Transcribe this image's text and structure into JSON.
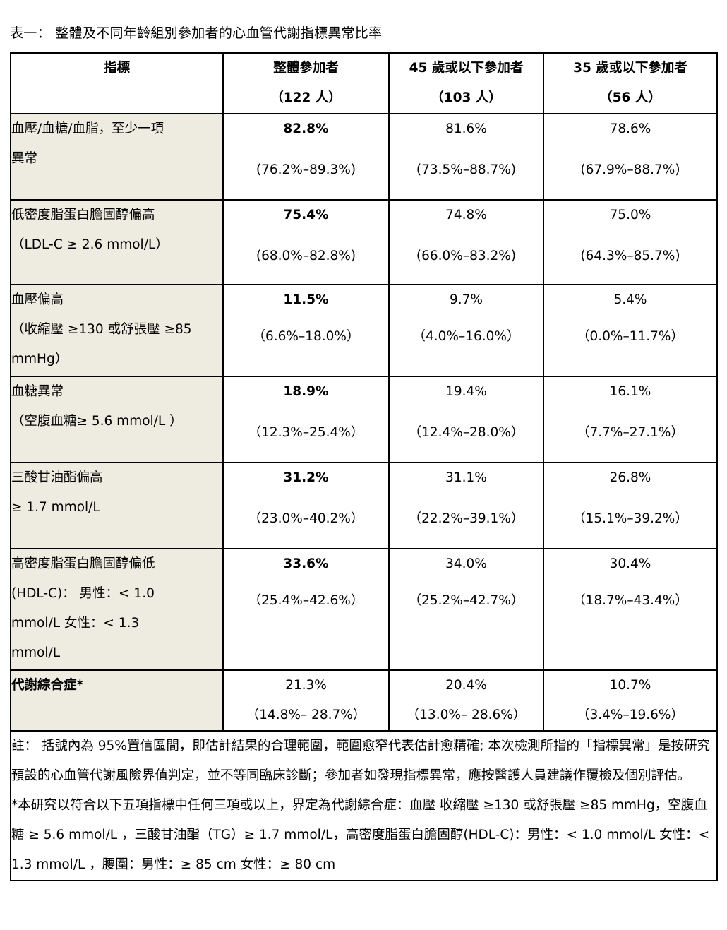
{
  "caption": "表一： 整體及不同年齡組別參加者的心血管代謝指標異常比率",
  "headers": [
    {
      "l1": "指標",
      "l2": ""
    },
    {
      "l1": "整體參加者",
      "l2": "（122 人）"
    },
    {
      "l1": "45 歲或以下參加者",
      "l2": "（103 人）"
    },
    {
      "l1": "35 歲或以下參加者",
      "l2": "（56 人）"
    }
  ],
  "rows": [
    {
      "indicator": [
        "血壓/血糖/血脂，至少一項",
        "異常"
      ],
      "cells": [
        {
          "v": "82.8%",
          "ci": "(76.2%–89.3%)"
        },
        {
          "v": "81.6%",
          "ci": "(73.5%–88.7%)"
        },
        {
          "v": "78.6%",
          "ci": "(67.9%–88.7%)"
        }
      ]
    },
    {
      "indicator": [
        "低密度脂蛋白膽固醇偏高",
        "（LDL-C ≥ 2.6 mmol/L）"
      ],
      "cells": [
        {
          "v": "75.4%",
          "ci": "(68.0%–82.8%)"
        },
        {
          "v": "74.8%",
          "ci": "(66.0%–83.2%)"
        },
        {
          "v": "75.0%",
          "ci": "(64.3%–85.7%)"
        }
      ]
    },
    {
      "indicator": [
        "血壓偏高",
        "（收縮壓 ≥130 或舒張壓 ≥85",
        "mmHg）"
      ],
      "cells": [
        {
          "v": "11.5%",
          "ci": "（6.6%–18.0%）"
        },
        {
          "v": "9.7%",
          "ci": "（4.0%–16.0%）"
        },
        {
          "v": "5.4%",
          "ci": "（0.0%–11.7%）"
        }
      ]
    },
    {
      "indicator": [
        "血糖異常",
        "（空腹血糖≥ 5.6 mmol/L ）"
      ],
      "cells": [
        {
          "v": "18.9%",
          "ci": "（12.3%–25.4%）"
        },
        {
          "v": "19.4%",
          "ci": "（12.4%–28.0%）"
        },
        {
          "v": "16.1%",
          "ci": "（7.7%–27.1%）"
        }
      ]
    },
    {
      "indicator": [
        "三酸甘油酯偏高",
        "≥ 1.7 mmol/L"
      ],
      "cells": [
        {
          "v": "31.2%",
          "ci": "（23.0%–40.2%）"
        },
        {
          "v": "31.1%",
          "ci": "（22.2%–39.1%）"
        },
        {
          "v": "26.8%",
          "ci": "（15.1%–39.2%）"
        }
      ]
    },
    {
      "indicator": [
        "高密度脂蛋白膽固醇偏低",
        "(HDL-C)： 男性：< 1.0",
        "mmol/L 女性：< 1.3",
        "mmol/L"
      ],
      "cells": [
        {
          "v": "33.6%",
          "ci": "（25.4%–42.6%）"
        },
        {
          "v": "34.0%",
          "ci": "（25.2%–42.7%）"
        },
        {
          "v": "30.4%",
          "ci": "（18.7%–43.4%）"
        }
      ]
    },
    {
      "indicator": [
        "代謝綜合症*"
      ],
      "cells": [
        {
          "v": "21.3%",
          "ci": "（14.8%– 28.7%）"
        },
        {
          "v": "20.4%",
          "ci": "（13.0%– 28.6%）"
        },
        {
          "v": "10.7%",
          "ci": "（3.4%–19.6%）"
        }
      ]
    }
  ],
  "notes": {
    "p1": "註： 括號內為 95%置信區間，即估計結果的合理範圍，範圍愈窄代表估計愈精確; 本次檢測所指的「指標異常」是按研究預設的心血管代謝風險界值判定，並不等同臨床診斷；參加者如發現指標異常，應按醫護人員建議作覆檢及個別評估。",
    "p2": "*本研究以符合以下五項指標中任何三項或以上，界定為代謝綜合症：血壓 收縮壓 ≥130 或舒張壓 ≥85 mmHg，空腹血糖 ≥ 5.6 mmol/L ，三酸甘油酯（TG）≥ 1.7 mmol/L，高密度脂蛋白膽固醇(HDL-C)：男性：< 1.0 mmol/L 女性：< 1.3 mmol/L ，腰圍：男性：≥ 85 cm 女性：≥ 80 cm"
  }
}
